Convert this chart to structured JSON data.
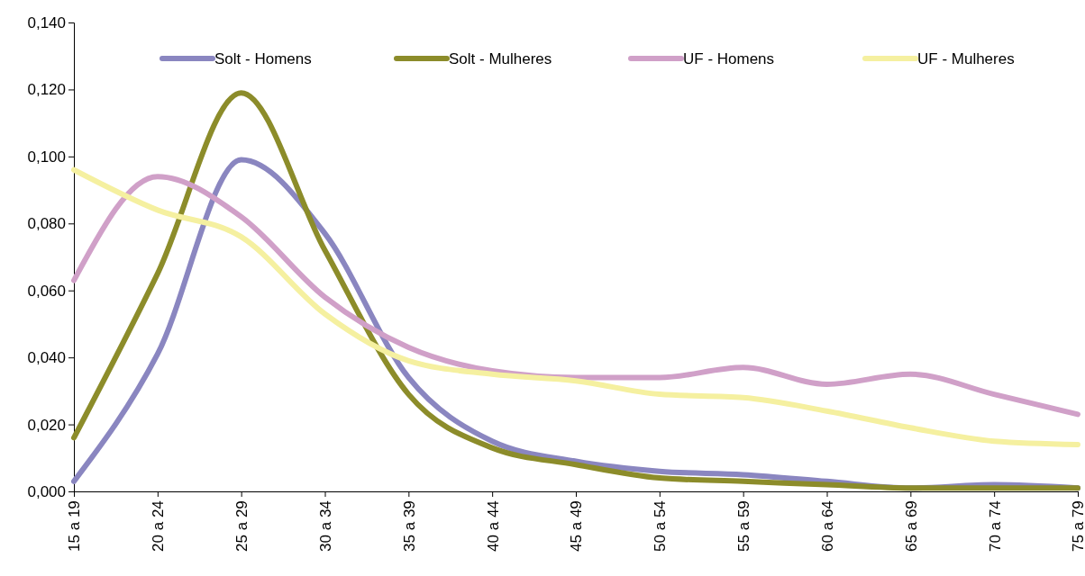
{
  "chart_data": {
    "type": "line",
    "categories": [
      "15 a 19",
      "20 a 24",
      "25 a 29",
      "30 a 34",
      "35 a 39",
      "40 a 44",
      "45 a 49",
      "50 a 54",
      "55 a 59",
      "60 a 64",
      "65 a 69",
      "70 a 74",
      "75 a 79"
    ],
    "series": [
      {
        "name": "Solt - Homens",
        "color": "#8a86c0",
        "values": [
          0.003,
          0.041,
          0.099,
          0.077,
          0.034,
          0.015,
          0.009,
          0.006,
          0.005,
          0.003,
          0.001,
          0.002,
          0.001
        ]
      },
      {
        "name": "Solt - Mulheres",
        "color": "#8c8c2a",
        "values": [
          0.016,
          0.065,
          0.119,
          0.072,
          0.029,
          0.013,
          0.008,
          0.004,
          0.003,
          0.002,
          0.001,
          0.001,
          0.001
        ]
      },
      {
        "name": "UF - Homens",
        "color": "#d0a0c8",
        "values": [
          0.063,
          0.094,
          0.082,
          0.058,
          0.043,
          0.036,
          0.034,
          0.034,
          0.037,
          0.032,
          0.035,
          0.029,
          0.023
        ]
      },
      {
        "name": "UF - Mulheres",
        "color": "#f5f0a0",
        "values": [
          0.096,
          0.084,
          0.076,
          0.053,
          0.039,
          0.035,
          0.033,
          0.029,
          0.028,
          0.024,
          0.019,
          0.015,
          0.014
        ]
      }
    ],
    "ylim": [
      0,
      0.14
    ],
    "yticks": [
      {
        "value": 0,
        "label": "0,000"
      },
      {
        "value": 0.02,
        "label": "0,020"
      },
      {
        "value": 0.04,
        "label": "0,040"
      },
      {
        "value": 0.06,
        "label": "0,060"
      },
      {
        "value": 0.08,
        "label": "0,080"
      },
      {
        "value": 0.1,
        "label": "0,100"
      },
      {
        "value": 0.12,
        "label": "0,120"
      },
      {
        "value": 0.14,
        "label": "0,140"
      }
    ],
    "legend": "top",
    "marker": "none",
    "line_style": "solid"
  }
}
